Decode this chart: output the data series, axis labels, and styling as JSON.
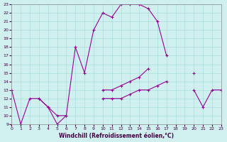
{
  "xlabel": "Windchill (Refroidissement éolien,°C)",
  "background_color": "#cff0ee",
  "grid_color": "#aadddd",
  "line_color": "#990099",
  "xlim": [
    0,
    23
  ],
  "ylim": [
    9,
    23
  ],
  "yticks": [
    9,
    10,
    11,
    12,
    13,
    14,
    15,
    16,
    17,
    18,
    19,
    20,
    21,
    22,
    23
  ],
  "xticks": [
    0,
    1,
    2,
    3,
    4,
    5,
    6,
    7,
    8,
    9,
    10,
    11,
    12,
    13,
    14,
    15,
    16,
    17,
    18,
    19,
    20,
    21,
    22,
    23
  ],
  "line1_y": [
    13,
    9,
    12,
    12,
    11,
    9,
    10,
    18,
    15,
    20,
    22,
    21.5,
    23,
    23,
    23,
    22.5,
    21,
    17,
    null,
    null,
    null,
    null,
    null,
    null
  ],
  "line2_y": [
    13,
    null,
    null,
    12,
    11,
    10,
    10,
    null,
    null,
    null,
    13,
    13,
    13.5,
    14,
    14.5,
    15.5,
    null,
    null,
    null,
    null,
    15,
    null,
    null,
    null
  ],
  "line3_y": [
    13,
    null,
    null,
    null,
    null,
    null,
    null,
    null,
    null,
    null,
    12,
    12,
    12,
    12.5,
    13,
    13,
    13.5,
    14,
    null,
    null,
    13,
    11,
    13,
    13
  ]
}
